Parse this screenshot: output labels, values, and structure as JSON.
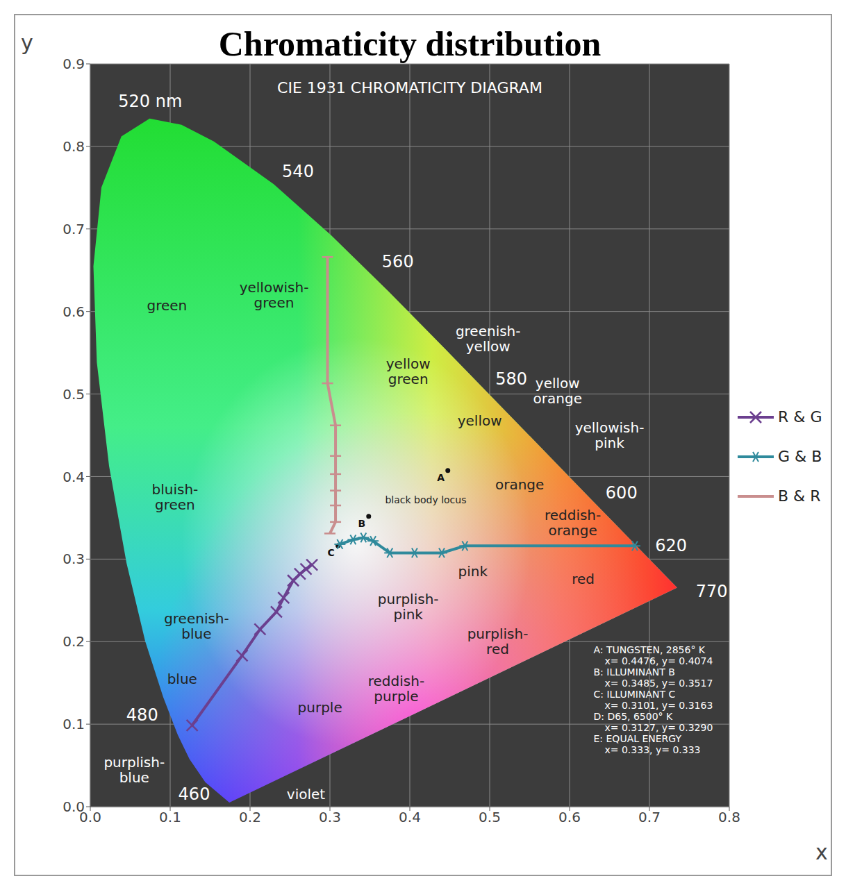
{
  "chart_data": {
    "type": "line",
    "title": "Chromaticity distribution",
    "subtitle": "CIE 1931 CHROMATICITY DIAGRAM",
    "x_label": "x",
    "y_label": "y",
    "xlim": [
      0,
      0.8
    ],
    "xticks": [
      {
        "value": 0,
        "label": "0.0"
      },
      0.1,
      0.2,
      0.3,
      0.4,
      0.5,
      0.6,
      0.7,
      0.8
    ],
    "ylim": [
      0,
      0.9
    ],
    "yticks": [
      {
        "value": 0,
        "label": "0.0"
      },
      0.1,
      0.2,
      0.3,
      0.4,
      0.5,
      0.6,
      0.7,
      0.8,
      0.9
    ],
    "grid": true,
    "legend": "right",
    "series": [
      {
        "name": "R & G",
        "color": "#6b3f8f",
        "marker": "x",
        "line_style": "solid",
        "x": [
          0.1275,
          0.19,
          0.2125,
          0.233,
          0.242,
          0.254,
          0.2625,
          0.27,
          0.2775
        ],
        "values": [
          0.0986,
          0.183,
          0.215,
          0.236,
          0.253,
          0.274,
          0.282,
          0.288,
          0.293
        ]
      },
      {
        "name": "G & B",
        "color": "#2f8a9c",
        "marker": "star",
        "line_style": "solid",
        "x": [
          0.3125,
          0.329,
          0.342,
          0.354,
          0.375,
          0.406,
          0.44,
          0.469,
          0.6817
        ],
        "values": [
          0.318,
          0.3235,
          0.326,
          0.322,
          0.3075,
          0.3075,
          0.3075,
          0.316,
          0.316
        ]
      },
      {
        "name": "B & R",
        "color": "#c98e8e",
        "marker": "dash",
        "line_style": "solid",
        "x": [
          0.3,
          0.307,
          0.307,
          0.307,
          0.307,
          0.307,
          0.307,
          0.297,
          0.297
        ],
        "values": [
          0.331,
          0.345,
          0.365,
          0.383,
          0.403,
          0.425,
          0.462,
          0.513,
          0.666
        ]
      }
    ],
    "spectral_locus": {
      "x": [
        0.1741,
        0.144,
        0.1241,
        0.1096,
        0.0913,
        0.0687,
        0.0454,
        0.0235,
        0.0082,
        0.0039,
        0.0139,
        0.0389,
        0.0743,
        0.1142,
        0.1547,
        0.2296,
        0.3016,
        0.3731,
        0.4441,
        0.5125,
        0.5752,
        0.627,
        0.6658,
        0.6915,
        0.719,
        0.7347
      ],
      "y": [
        0.005,
        0.0297,
        0.0578,
        0.0868,
        0.1327,
        0.2007,
        0.295,
        0.4127,
        0.5384,
        0.6548,
        0.7502,
        0.812,
        0.8338,
        0.8262,
        0.8059,
        0.7543,
        0.6923,
        0.6245,
        0.5547,
        0.4866,
        0.4242,
        0.3725,
        0.334,
        0.3083,
        0.2809,
        0.2653
      ]
    },
    "wavelength_labels": [
      {
        "text": "520 nm",
        "x": 0.075,
        "y": 0.855
      },
      {
        "text": "540",
        "x": 0.26,
        "y": 0.77
      },
      {
        "text": "560",
        "x": 0.385,
        "y": 0.66
      },
      {
        "text": "580",
        "x": 0.527,
        "y": 0.518
      },
      {
        "text": "600",
        "x": 0.665,
        "y": 0.38
      },
      {
        "text": "620",
        "x": 0.727,
        "y": 0.316
      },
      {
        "text": "770",
        "x": 0.778,
        "y": 0.261
      },
      {
        "text": "480",
        "x": 0.065,
        "y": 0.111
      },
      {
        "text": "460",
        "x": 0.13,
        "y": 0.015
      }
    ],
    "region_labels": [
      {
        "text": "green",
        "x": 0.096,
        "y": 0.607,
        "color": "#222222"
      },
      {
        "text": "yellowish-\ngreen",
        "x": 0.23,
        "y": 0.62,
        "color": "#222222"
      },
      {
        "text": "yellow\ngreen",
        "x": 0.398,
        "y": 0.527,
        "color": "#222222"
      },
      {
        "text": "greenish-\nyellow",
        "x": 0.498,
        "y": 0.567,
        "color": "#ffffff"
      },
      {
        "text": "yellow\norange",
        "x": 0.585,
        "y": 0.504,
        "color": "#ffffff"
      },
      {
        "text": "yellow",
        "x": 0.4875,
        "y": 0.468,
        "color": "#222222"
      },
      {
        "text": "yellowish-\npink",
        "x": 0.65,
        "y": 0.45,
        "color": "#ffffff"
      },
      {
        "text": "orange",
        "x": 0.5375,
        "y": 0.39,
        "color": "#222222"
      },
      {
        "text": "reddish-\norange",
        "x": 0.604,
        "y": 0.344,
        "color": "#222222"
      },
      {
        "text": "red",
        "x": 0.617,
        "y": 0.276,
        "color": "#222222"
      },
      {
        "text": "pink",
        "x": 0.479,
        "y": 0.285,
        "color": "#222222"
      },
      {
        "text": "purplish-\npink",
        "x": 0.398,
        "y": 0.242,
        "color": "#222222"
      },
      {
        "text": "purplish-\nred",
        "x": 0.51,
        "y": 0.2,
        "color": "#222222"
      },
      {
        "text": "reddish-\npurple",
        "x": 0.383,
        "y": 0.143,
        "color": "#222222"
      },
      {
        "text": "purple",
        "x": 0.2875,
        "y": 0.12,
        "color": "#222222"
      },
      {
        "text": "blue",
        "x": 0.115,
        "y": 0.155,
        "color": "#222222"
      },
      {
        "text": "greenish-\nblue",
        "x": 0.133,
        "y": 0.219,
        "color": "#222222"
      },
      {
        "text": "bluish-\ngreen",
        "x": 0.106,
        "y": 0.375,
        "color": "#222222"
      },
      {
        "text": "purplish-\nblue",
        "x": 0.055,
        "y": 0.045,
        "color": "#ffffff"
      },
      {
        "text": "violet",
        "x": 0.27,
        "y": 0.015,
        "color": "#ffffff"
      },
      {
        "text": "black body locus",
        "x": 0.42,
        "y": 0.372,
        "color": "#222222"
      }
    ],
    "reference_points": [
      {
        "label": "A",
        "x": 0.4476,
        "y": 0.4074
      },
      {
        "label": "B",
        "x": 0.3485,
        "y": 0.3517
      },
      {
        "label": "C",
        "x": 0.3101,
        "y": 0.3163
      }
    ],
    "notes": [
      "A: TUNGSTEN, 2856° K",
      "x= 0.4476, y= 0.4074",
      "B: ILLUMINANT B",
      "x= 0.3485, y= 0.3517",
      "C: ILLUMINANT C",
      "x= 0.3101, y= 0.3163",
      "D: D65, 6500° K",
      "x= 0.3127, y= 0.3290",
      "E: EQUAL ENERGY",
      "x= 0.333, y= 0.333"
    ]
  }
}
